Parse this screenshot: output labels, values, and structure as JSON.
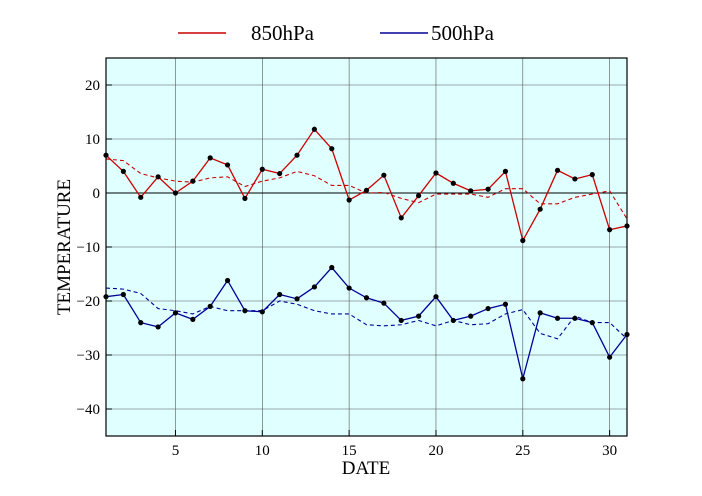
{
  "chart_data": {
    "type": "line",
    "xlabel": "DATE",
    "ylabel": "TEMPERATURE",
    "xlim": [
      1,
      31
    ],
    "ylim": [
      -45,
      25
    ],
    "xticks": [
      5,
      10,
      15,
      20,
      25,
      30
    ],
    "yticks": [
      -40,
      -30,
      -20,
      -10,
      0,
      10,
      20
    ],
    "grid": true,
    "zero_line": true,
    "background": "#E0FFFF",
    "legend_position": "top",
    "x": [
      1,
      2,
      3,
      4,
      5,
      6,
      7,
      8,
      9,
      10,
      11,
      12,
      13,
      14,
      15,
      16,
      17,
      18,
      19,
      20,
      21,
      22,
      23,
      24,
      25,
      26,
      27,
      28,
      29,
      30,
      31
    ],
    "series": [
      {
        "name": "850hPa",
        "color": "#CC0000",
        "values": [
          7.0,
          4.0,
          -0.8,
          3.0,
          0.0,
          2.2,
          6.5,
          5.2,
          -1.0,
          4.4,
          3.6,
          7.0,
          11.8,
          8.2,
          -1.3,
          0.5,
          3.3,
          -4.6,
          -0.5,
          3.7,
          1.8,
          0.4,
          0.7,
          4.0,
          -8.8,
          -3.0,
          4.2,
          2.6,
          3.4,
          -6.8,
          -6.1
        ],
        "normal": [
          6.3,
          6.0,
          3.6,
          2.8,
          2.2,
          2.0,
          2.8,
          3.0,
          1.2,
          2.2,
          2.8,
          4.0,
          3.2,
          1.4,
          1.4,
          0.0,
          0.1,
          -1.0,
          -1.8,
          -0.2,
          -0.2,
          -0.2,
          -0.8,
          0.8,
          0.8,
          -2.0,
          -2.0,
          -0.8,
          -0.2,
          0.4,
          -4.8
        ]
      },
      {
        "name": "500hPa",
        "color": "#000099",
        "values": [
          -19.2,
          -18.8,
          -24.0,
          -24.8,
          -22.2,
          -23.4,
          -21.0,
          -16.2,
          -21.8,
          -22.0,
          -18.8,
          -19.6,
          -17.4,
          -13.8,
          -17.6,
          -19.4,
          -20.4,
          -23.6,
          -22.8,
          -19.2,
          -23.6,
          -22.8,
          -21.4,
          -20.6,
          -34.4,
          -22.2,
          -23.2,
          -23.2,
          -24.0,
          -30.4,
          -26.2
        ],
        "normal": [
          -17.6,
          -17.8,
          -18.6,
          -21.4,
          -21.8,
          -22.4,
          -21.0,
          -21.8,
          -21.8,
          -21.8,
          -20.0,
          -20.6,
          -21.8,
          -22.4,
          -22.4,
          -24.4,
          -24.6,
          -24.4,
          -23.6,
          -24.6,
          -23.6,
          -24.4,
          -24.2,
          -22.4,
          -21.6,
          -26.0,
          -27.0,
          -22.8,
          -24.0,
          -24.0,
          -27.0
        ]
      }
    ]
  }
}
